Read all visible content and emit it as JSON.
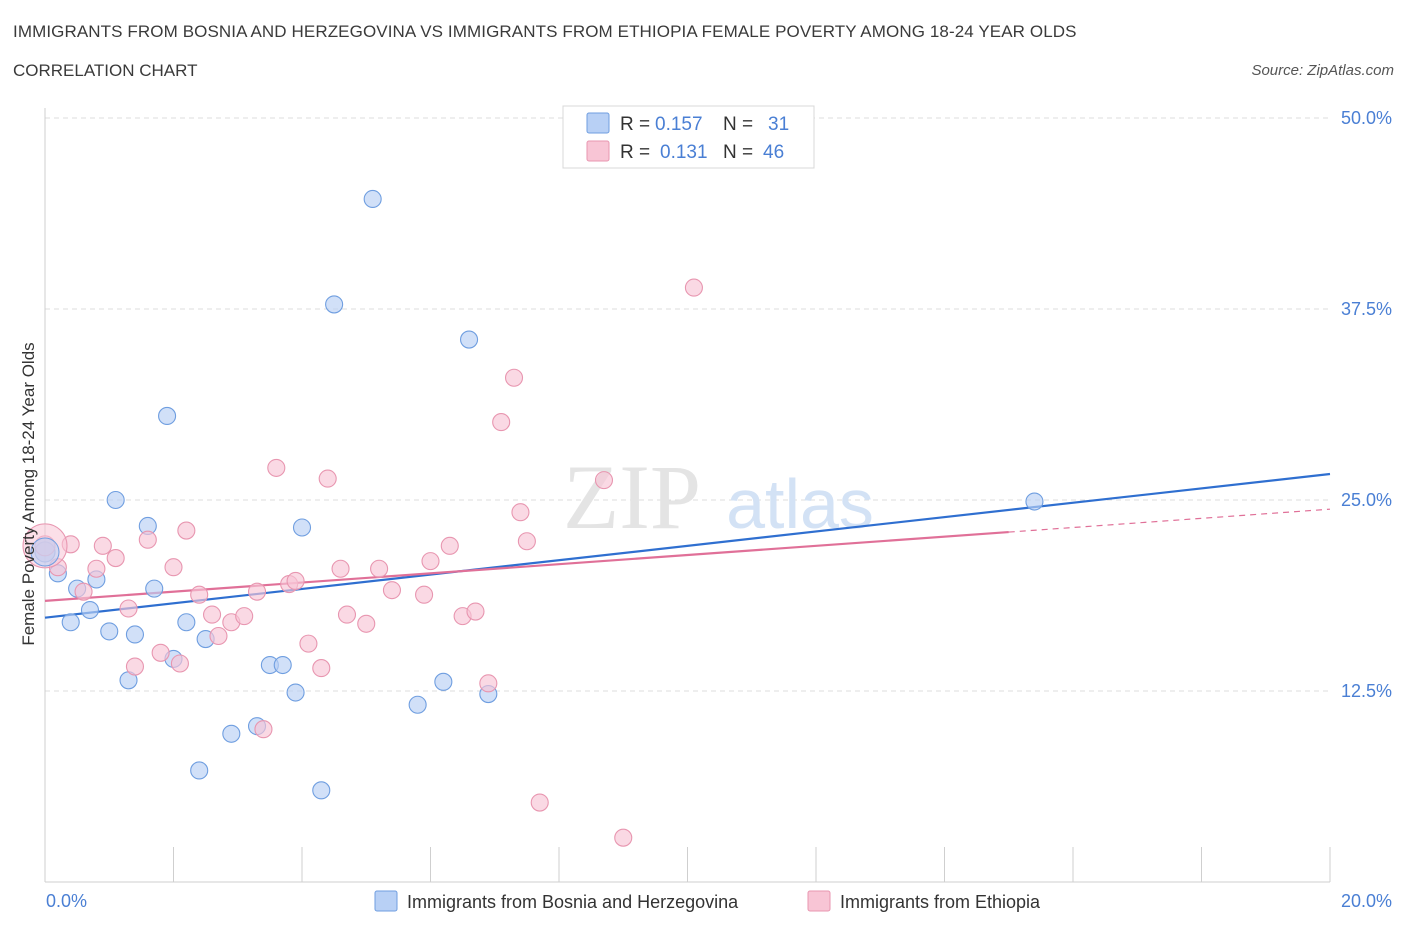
{
  "header": {
    "title": "IMMIGRANTS FROM BOSNIA AND HERZEGOVINA VS IMMIGRANTS FROM ETHIOPIA FEMALE POVERTY AMONG 18-24 YEAR OLDS",
    "subtitle": "CORRELATION CHART",
    "source": "Source: ZipAtlas.com"
  },
  "legend": {
    "r_label": "R =",
    "n_label": "N =",
    "series1_r": "0.157",
    "series1_n": "31",
    "series2_r": "0.131",
    "series2_n": "46"
  },
  "watermark": {
    "zip": "ZIP",
    "atlas": "atlas"
  },
  "colors": {
    "blue_fill": "#b8d0f5",
    "blue_stroke": "#6f9ee0",
    "blue_line": "#2f6fd0",
    "pink_fill": "#f8c5d5",
    "pink_stroke": "#e896b0",
    "pink_line": "#e07098",
    "tick_text": "#4a7fd4"
  },
  "chart_data": {
    "type": "scatter",
    "xlabel": "",
    "ylabel": "Female Poverty Among 18-24 Year Olds",
    "xlim": [
      0,
      20
    ],
    "ylim": [
      0,
      50
    ],
    "x_tick_labels": [
      "0.0%",
      "20.0%"
    ],
    "y_ticks": [
      12.5,
      25.0,
      37.5,
      50.0
    ],
    "y_tick_labels": [
      "12.5%",
      "25.0%",
      "37.5%",
      "50.0%"
    ],
    "grid": "horizontal dashed",
    "legend_position": "top-center",
    "series": [
      {
        "name": "Immigrants from Bosnia and Herzegovina",
        "color": "blue",
        "trend": {
          "x": [
            0,
            20
          ],
          "y": [
            17.3,
            26.7
          ]
        },
        "points": [
          [
            0.0,
            21.6
          ],
          [
            0.2,
            20.2
          ],
          [
            0.4,
            17.0
          ],
          [
            0.5,
            19.2
          ],
          [
            0.7,
            17.8
          ],
          [
            0.8,
            19.8
          ],
          [
            1.0,
            16.4
          ],
          [
            1.1,
            25.0
          ],
          [
            1.3,
            13.2
          ],
          [
            1.4,
            16.2
          ],
          [
            1.6,
            23.3
          ],
          [
            1.7,
            19.2
          ],
          [
            1.9,
            30.5
          ],
          [
            2.0,
            14.6
          ],
          [
            2.2,
            17.0
          ],
          [
            2.4,
            7.3
          ],
          [
            2.5,
            15.9
          ],
          [
            2.9,
            9.7
          ],
          [
            3.3,
            10.2
          ],
          [
            3.5,
            14.2
          ],
          [
            3.7,
            14.2
          ],
          [
            3.9,
            12.4
          ],
          [
            4.0,
            23.2
          ],
          [
            4.3,
            6.0
          ],
          [
            4.5,
            37.8
          ],
          [
            5.1,
            44.7
          ],
          [
            5.8,
            11.6
          ],
          [
            6.2,
            13.1
          ],
          [
            6.6,
            35.5
          ],
          [
            6.9,
            12.3
          ],
          [
            15.4,
            24.9
          ]
        ]
      },
      {
        "name": "Immigrants from Ethiopia",
        "color": "pink",
        "trend": {
          "x": [
            0,
            15
          ],
          "y": [
            18.4,
            22.9
          ]
        },
        "trend_dashed": {
          "x": [
            15,
            20
          ],
          "y": [
            22.9,
            24.4
          ]
        },
        "points": [
          [
            0.0,
            22.0
          ],
          [
            0.2,
            20.6
          ],
          [
            0.4,
            22.1
          ],
          [
            0.6,
            19.0
          ],
          [
            0.8,
            20.5
          ],
          [
            0.9,
            22.0
          ],
          [
            1.1,
            21.2
          ],
          [
            1.3,
            17.9
          ],
          [
            1.4,
            14.1
          ],
          [
            1.6,
            22.4
          ],
          [
            1.8,
            15.0
          ],
          [
            2.0,
            20.6
          ],
          [
            2.1,
            14.3
          ],
          [
            2.2,
            23.0
          ],
          [
            2.4,
            18.8
          ],
          [
            2.6,
            17.5
          ],
          [
            2.7,
            16.1
          ],
          [
            2.9,
            17.0
          ],
          [
            3.1,
            17.4
          ],
          [
            3.3,
            19.0
          ],
          [
            3.4,
            10.0
          ],
          [
            3.6,
            27.1
          ],
          [
            3.8,
            19.5
          ],
          [
            3.9,
            19.7
          ],
          [
            4.1,
            15.6
          ],
          [
            4.3,
            14.0
          ],
          [
            4.4,
            26.4
          ],
          [
            4.6,
            20.5
          ],
          [
            4.7,
            17.5
          ],
          [
            5.0,
            16.9
          ],
          [
            5.2,
            20.5
          ],
          [
            5.4,
            19.1
          ],
          [
            5.9,
            18.8
          ],
          [
            6.0,
            21.0
          ],
          [
            6.3,
            22.0
          ],
          [
            6.5,
            17.4
          ],
          [
            6.7,
            17.7
          ],
          [
            6.9,
            13.0
          ],
          [
            7.1,
            30.1
          ],
          [
            7.3,
            33.0
          ],
          [
            7.4,
            24.2
          ],
          [
            7.5,
            22.3
          ],
          [
            7.7,
            5.2
          ],
          [
            8.7,
            26.3
          ],
          [
            9.0,
            2.9
          ],
          [
            10.1,
            38.9
          ]
        ]
      }
    ]
  },
  "bottom_legend": {
    "series1": "Immigrants from Bosnia and Herzegovina",
    "series2": "Immigrants from Ethiopia"
  }
}
